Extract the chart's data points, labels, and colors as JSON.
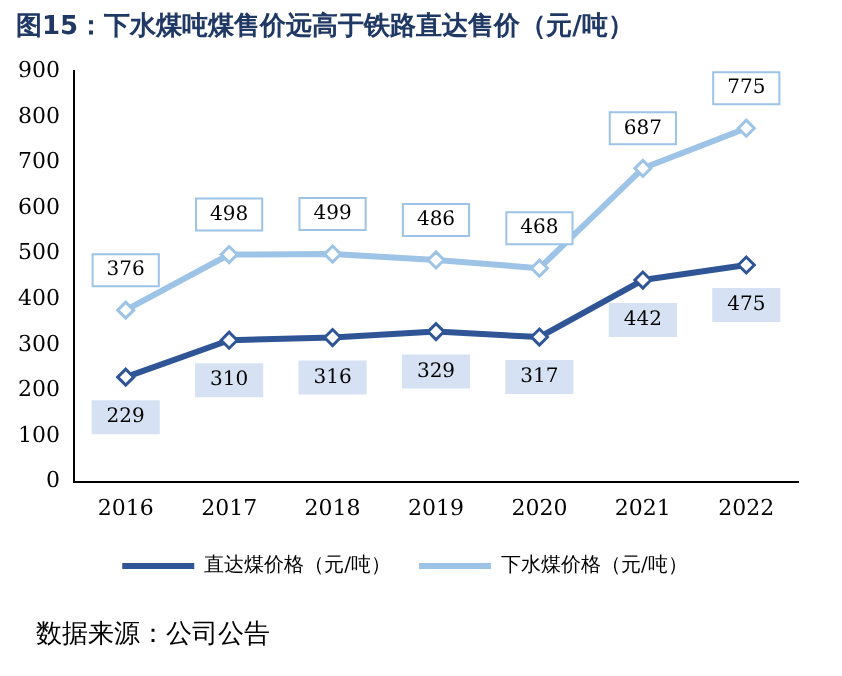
{
  "chart_data": {
    "type": "line",
    "title": "图15：下水煤吨煤售价远高于铁路直达售价（元/吨）",
    "categories": [
      "2016",
      "2017",
      "2018",
      "2019",
      "2020",
      "2021",
      "2022"
    ],
    "series": [
      {
        "name": "直达煤价格（元/吨）",
        "color": "#2f5597",
        "values": [
          229,
          310,
          316,
          329,
          317,
          442,
          475
        ]
      },
      {
        "name": "下水煤价格（元/吨）",
        "color": "#9dc3e6",
        "values": [
          376,
          498,
          499,
          486,
          468,
          687,
          775
        ]
      }
    ],
    "ylim": [
      0,
      900
    ],
    "yticks": [
      0,
      100,
      200,
      300,
      400,
      500,
      600,
      700,
      800,
      900
    ],
    "grid": false,
    "legend": "bottom",
    "marker": "diamond",
    "line_style": "solid",
    "data_labels": true,
    "annotations": [
      "数据来源：公司公告"
    ]
  }
}
